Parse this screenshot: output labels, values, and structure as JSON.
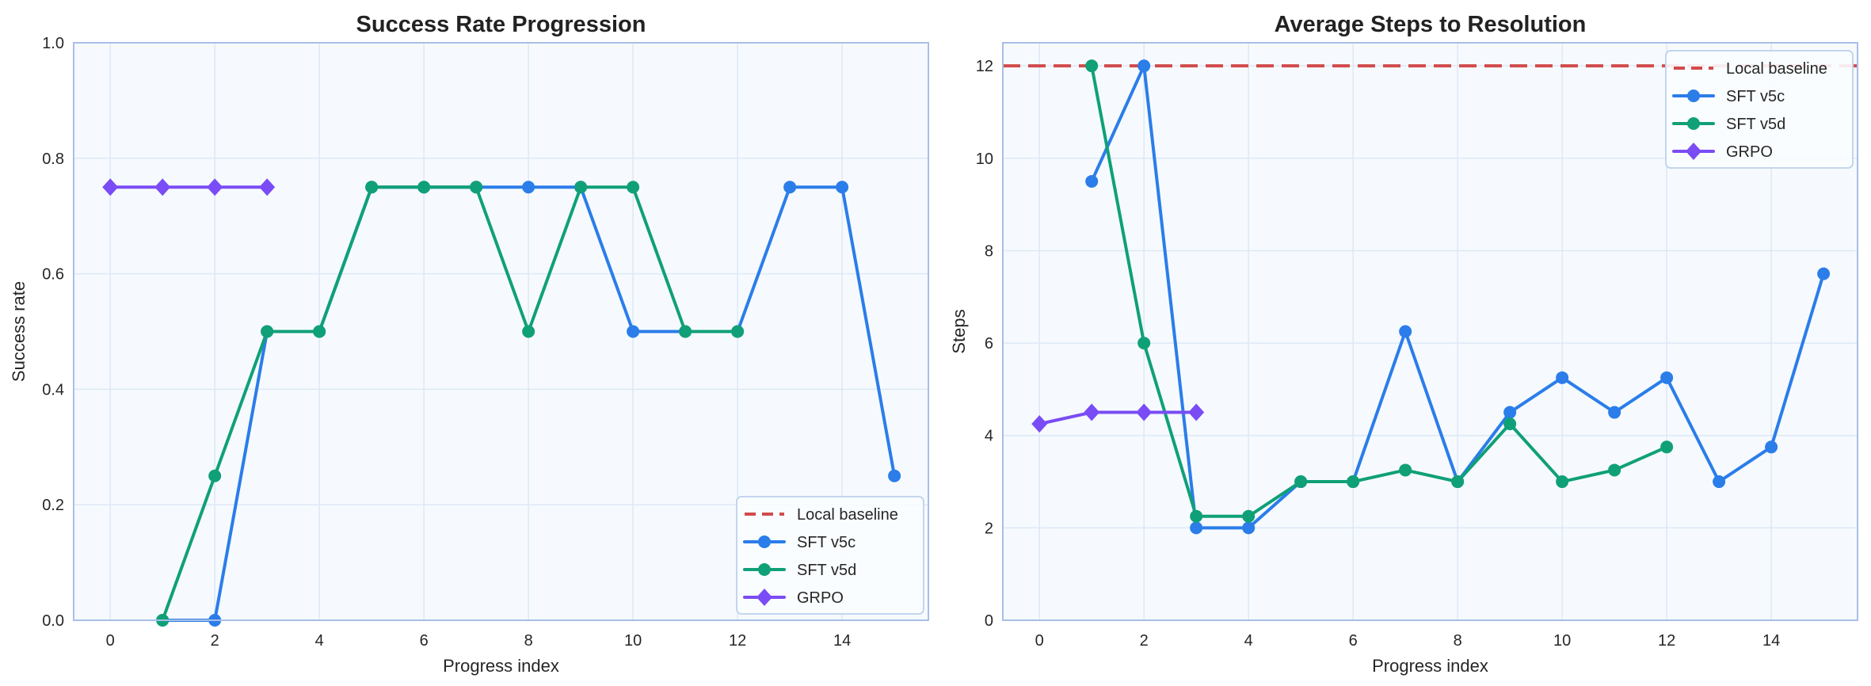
{
  "chart_data": [
    {
      "type": "line",
      "title": "Success Rate Progression",
      "xlabel": "Progress index",
      "ylabel": "Success rate",
      "xlim": [
        -0.7,
        15.65
      ],
      "ylim": [
        0,
        1.0
      ],
      "xticks": [
        0,
        2,
        4,
        6,
        8,
        10,
        12,
        14
      ],
      "yticks": [
        0.0,
        0.2,
        0.4,
        0.6,
        0.8,
        1.0
      ],
      "ytick_labels": [
        "0.0",
        "0.2",
        "0.4",
        "0.6",
        "0.8",
        "1.0"
      ],
      "grid": true,
      "legend_position": "lower-right",
      "baseline": {
        "name": "Local baseline",
        "value": 0,
        "color": "#d24b4b",
        "style": "dashed"
      },
      "series": [
        {
          "name": "SFT v5c",
          "color": "#2b7de9",
          "marker": "circle",
          "x": [
            1,
            2,
            3,
            4,
            5,
            6,
            7,
            8,
            9,
            10,
            11,
            12,
            13,
            14,
            15
          ],
          "y": [
            0,
            0,
            0.5,
            0.5,
            0.75,
            0.75,
            0.75,
            0.75,
            0.75,
            0.5,
            0.5,
            0.5,
            0.75,
            0.75,
            0.25
          ]
        },
        {
          "name": "SFT v5d",
          "color": "#10a078",
          "marker": "circle",
          "x": [
            1,
            2,
            3,
            4,
            5,
            6,
            7,
            8,
            9,
            10,
            11,
            12
          ],
          "y": [
            0,
            0.25,
            0.5,
            0.5,
            0.75,
            0.75,
            0.75,
            0.5,
            0.75,
            0.75,
            0.5,
            0.5
          ]
        },
        {
          "name": "GRPO",
          "color": "#7a4cf5",
          "marker": "diamond",
          "x": [
            0,
            1,
            2,
            3
          ],
          "y": [
            0.75,
            0.75,
            0.75,
            0.75
          ]
        }
      ]
    },
    {
      "type": "line",
      "title": "Average Steps to Resolution",
      "xlabel": "Progress index",
      "ylabel": "Steps",
      "xlim": [
        -0.7,
        15.65
      ],
      "ylim": [
        0,
        12.5
      ],
      "xticks": [
        0,
        2,
        4,
        6,
        8,
        10,
        12,
        14
      ],
      "yticks": [
        0,
        2,
        4,
        6,
        8,
        10,
        12
      ],
      "ytick_labels": [
        "0",
        "2",
        "4",
        "6",
        "8",
        "10",
        "12"
      ],
      "grid": true,
      "legend_position": "upper-right",
      "baseline": {
        "name": "Local baseline",
        "value": 12,
        "color": "#d24b4b",
        "style": "dashed"
      },
      "series": [
        {
          "name": "SFT v5c",
          "color": "#2b7de9",
          "marker": "circle",
          "x": [
            1,
            2,
            3,
            4,
            5,
            6,
            7,
            8,
            9,
            10,
            11,
            12,
            13,
            14,
            15
          ],
          "y": [
            9.5,
            12,
            2,
            2,
            3,
            3,
            6.25,
            3,
            4.5,
            5.25,
            4.5,
            5.25,
            3,
            3.75,
            7.5
          ]
        },
        {
          "name": "SFT v5d",
          "color": "#10a078",
          "marker": "circle",
          "x": [
            1,
            2,
            3,
            4,
            5,
            6,
            7,
            8,
            9,
            10,
            11,
            12
          ],
          "y": [
            12,
            6,
            2.25,
            2.25,
            3,
            3,
            3.25,
            3,
            4.25,
            3,
            3.25,
            3.75
          ]
        },
        {
          "name": "GRPO",
          "color": "#7a4cf5",
          "marker": "diamond",
          "x": [
            0,
            1,
            2,
            3
          ],
          "y": [
            4.25,
            4.5,
            4.5,
            4.5
          ]
        }
      ]
    }
  ]
}
